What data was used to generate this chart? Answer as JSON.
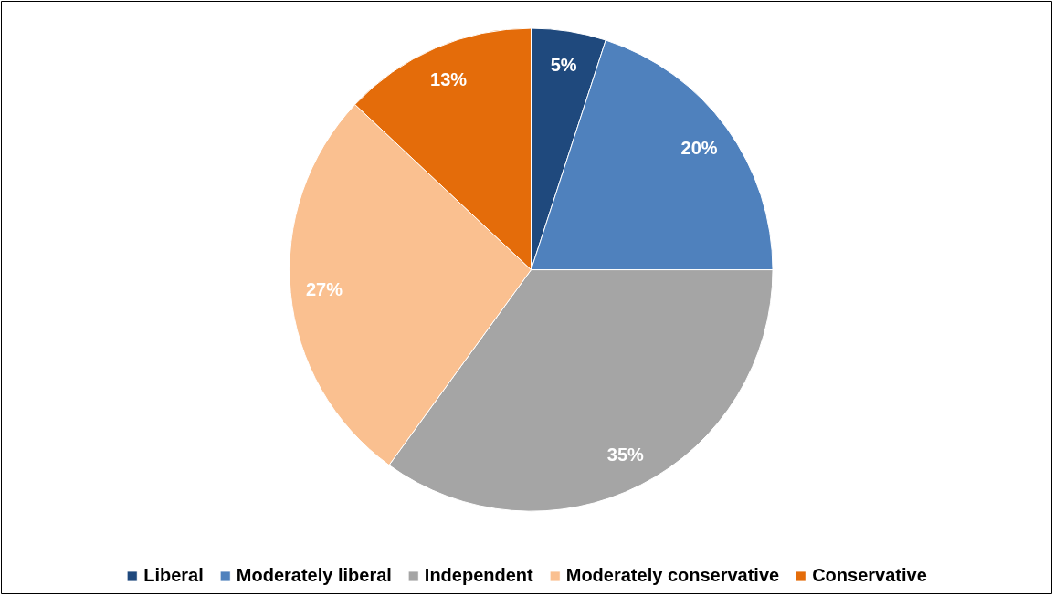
{
  "chart_data": {
    "type": "pie",
    "categories": [
      "Liberal",
      "Moderately liberal",
      "Independent",
      "Moderately conservative",
      "Conservative"
    ],
    "values": [
      5,
      20,
      35,
      27,
      13
    ],
    "colors": [
      "#1f497d",
      "#4f81bd",
      "#a5a5a5",
      "#fac090",
      "#e46c0a"
    ],
    "value_labels": [
      "5%",
      "20%",
      "35%",
      "27%",
      "13%"
    ],
    "legend": "bottom"
  }
}
